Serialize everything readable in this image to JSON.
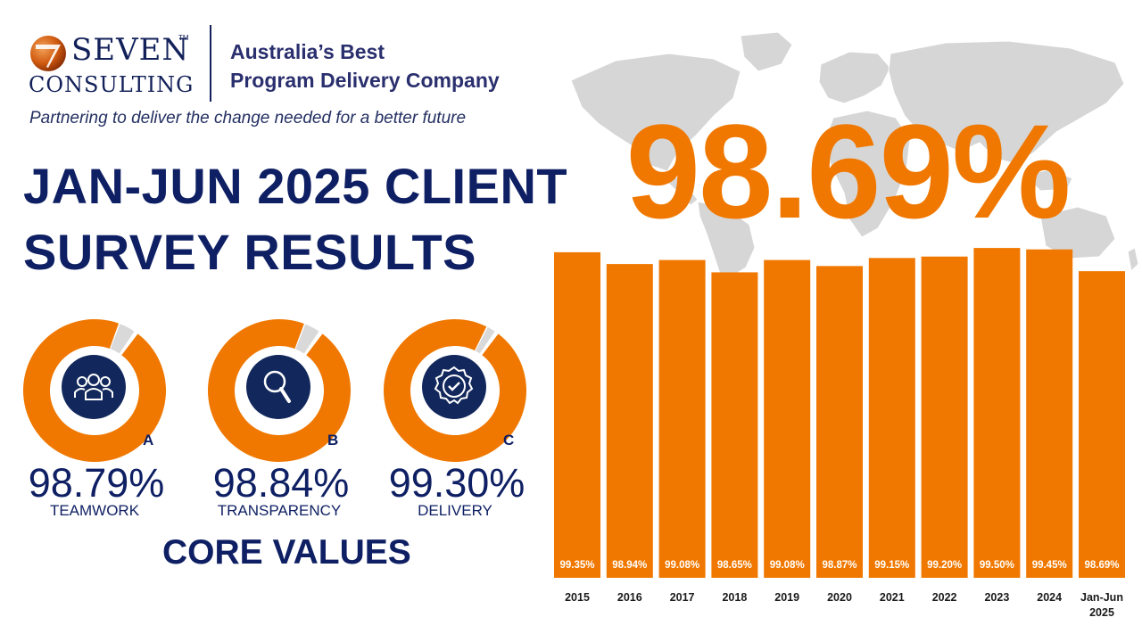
{
  "header": {
    "logo_word_1": "SEVEN",
    "logo_word_2": "CONSULTING",
    "trademark": "TM",
    "tagline_line_1": "Australia’s Best",
    "tagline_line_2": "Program Delivery Company",
    "subtitle": "Partnering to deliver the change needed for a better future"
  },
  "title": {
    "line_1": "JAN-JUN 2025 CLIENT",
    "line_2": "SURVEY RESULTS"
  },
  "headline_value": "98.69%",
  "core_values": {
    "heading": "CORE VALUES",
    "items": [
      {
        "letter": "A",
        "value": "98.79%",
        "label": "TEAMWORK",
        "icon": "teamwork-icon",
        "fraction": 0.9879
      },
      {
        "letter": "B",
        "value": "98.84%",
        "label": "TRANSPARENCY",
        "icon": "magnifier-icon",
        "fraction": 0.9884
      },
      {
        "letter": "C",
        "value": "99.30%",
        "label": "DELIVERY",
        "icon": "badge-check-icon",
        "fraction": 0.993
      }
    ]
  },
  "colors": {
    "accent_orange": "#f07800",
    "navy": "#0e1f63",
    "donut_track": "#d9d9d9",
    "map_grey": "#d6d6d6"
  },
  "chart_data": {
    "type": "bar",
    "categories": [
      "2015",
      "2016",
      "2017",
      "2018",
      "2019",
      "2020",
      "2021",
      "2022",
      "2023",
      "2024",
      "Jan-Jun 2025"
    ],
    "values": [
      99.35,
      98.94,
      99.08,
      98.65,
      99.08,
      98.87,
      99.15,
      99.2,
      99.5,
      99.45,
      98.69
    ],
    "value_labels": [
      "99.35%",
      "98.94%",
      "99.08%",
      "98.65%",
      "99.08%",
      "98.87%",
      "99.15%",
      "99.20%",
      "99.50%",
      "99.45%",
      "98.69%"
    ],
    "category_labels": [
      [
        "2015"
      ],
      [
        "2016"
      ],
      [
        "2017"
      ],
      [
        "2018"
      ],
      [
        "2019"
      ],
      [
        "2020"
      ],
      [
        "2021"
      ],
      [
        "2022"
      ],
      [
        "2023"
      ],
      [
        "2024"
      ],
      [
        "Jan-Jun",
        "2025"
      ]
    ],
    "title": "",
    "xlabel": "",
    "ylabel": "",
    "ylim": [
      88,
      100
    ],
    "grid": false,
    "legend": "none",
    "bar_color": "#f07800"
  }
}
